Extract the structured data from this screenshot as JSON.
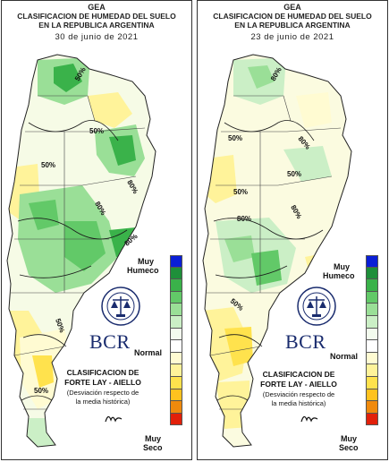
{
  "panels": [
    {
      "id": "map-june-30",
      "title1": "GEA",
      "title2": "CLASIFICACION DE HUMEDAD DEL SUELO",
      "title3": "EN LA REPUBLICA ARGENTINA",
      "date": "30 de junio de 2021",
      "contours": [
        "50%",
        "50%",
        "80%",
        "50%",
        "80%",
        "80%",
        "50%",
        "50%"
      ]
    },
    {
      "id": "map-june-23",
      "title1": "GEA",
      "title2": "CLASIFICACION DE HUMEDAD DEL SUELO",
      "title3": "EN LA REPUBLICA ARGENTINA",
      "date": "23 de junio de 2021",
      "contours": [
        "80%",
        "50%",
        "80%",
        "50%",
        "80%",
        "50%",
        "80%",
        "50%"
      ]
    }
  ],
  "legend": {
    "top1": "Muy",
    "top2": "Humeco",
    "mid": "Normal",
    "bottom1": "Muy",
    "bottom2": "Seco",
    "colors": [
      "#0a1fd6",
      "#1e8f3a",
      "#3ab24a",
      "#62c968",
      "#9adf97",
      "#cbefc6",
      "#f3fbee",
      "#ffffff",
      "#fffbd2",
      "#fff39a",
      "#ffe24d",
      "#ffc21f",
      "#f08a0c",
      "#e2200a"
    ]
  },
  "logo": {
    "text": "BCR"
  },
  "classification": {
    "line1": "CLASIFICACION DE",
    "line2": "FORTE LAY - AIELLO",
    "note1": "(Desviación respecto de",
    "note2": "la media histórica)"
  }
}
